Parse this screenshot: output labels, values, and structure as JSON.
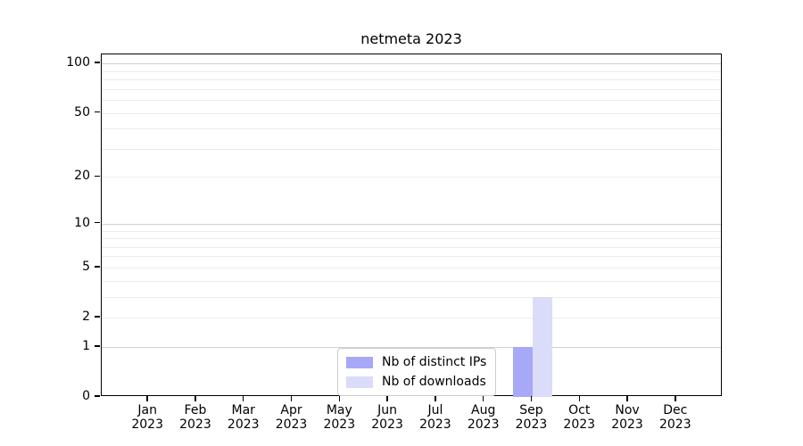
{
  "title": "netmeta 2023",
  "legend": {
    "items": [
      {
        "label": "Nb of distinct IPs",
        "color": "#a8a8f8"
      },
      {
        "label": "Nb of downloads",
        "color": "#dbdbfa"
      }
    ]
  },
  "chart_data": {
    "type": "bar",
    "title": "netmeta 2023",
    "months": [
      "Jan",
      "Feb",
      "Mar",
      "Apr",
      "May",
      "Jun",
      "Jul",
      "Aug",
      "Sep",
      "Oct",
      "Nov",
      "Dec"
    ],
    "year": "2023",
    "categories": [
      "Jan 2023",
      "Feb 2023",
      "Mar 2023",
      "Apr 2023",
      "May 2023",
      "Jun 2023",
      "Jul 2023",
      "Aug 2023",
      "Sep 2023",
      "Oct 2023",
      "Nov 2023",
      "Dec 2023"
    ],
    "series": [
      {
        "name": "Nb of distinct IPs",
        "color": "#a8a8f8",
        "values": [
          0,
          0,
          0,
          0,
          0,
          0,
          0,
          0,
          1,
          0,
          0,
          0
        ]
      },
      {
        "name": "Nb of downloads",
        "color": "#dbdbfa",
        "values": [
          0,
          0,
          0,
          0,
          0,
          0,
          0,
          0,
          3,
          0,
          0,
          0
        ]
      }
    ],
    "yscale": "log1p",
    "ylim": [
      0,
      113.5
    ],
    "yticks": [
      0,
      1,
      2,
      5,
      10,
      20,
      50,
      100
    ],
    "major_gridlines": [
      1,
      10,
      100
    ],
    "minor_gridlines": [
      2,
      3,
      4,
      5,
      6,
      7,
      8,
      9,
      20,
      30,
      40,
      50,
      60,
      70,
      80,
      90
    ],
    "grid": true,
    "legend_position": "bottom-center",
    "xlabel": "",
    "ylabel": ""
  }
}
